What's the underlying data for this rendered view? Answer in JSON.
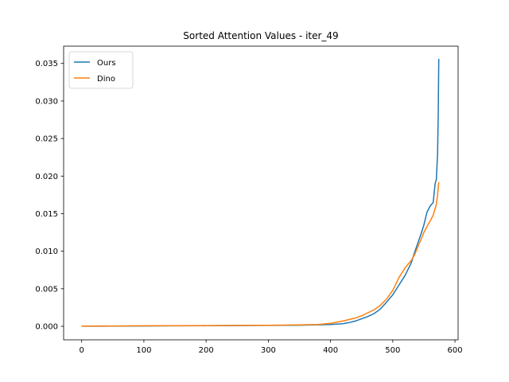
{
  "chart_data": {
    "type": "line",
    "title": "Sorted Attention Values - iter_49",
    "xlabel": "",
    "ylabel": "",
    "xlim": [
      -29,
      605
    ],
    "ylim": [
      -0.0018,
      0.0373
    ],
    "xticks": [
      0,
      100,
      200,
      300,
      400,
      500,
      600
    ],
    "xtick_labels": [
      "0",
      "100",
      "200",
      "300",
      "400",
      "500",
      "600"
    ],
    "yticks": [
      0.0,
      0.005,
      0.01,
      0.015,
      0.02,
      0.025,
      0.03,
      0.035
    ],
    "ytick_labels": [
      "0.000",
      "0.005",
      "0.010",
      "0.015",
      "0.020",
      "0.025",
      "0.030",
      "0.035"
    ],
    "grid": false,
    "legend_position": "upper-left",
    "series": [
      {
        "name": "Ours",
        "color": "#1f77b4",
        "x": [
          0,
          50,
          100,
          150,
          200,
          250,
          300,
          350,
          380,
          400,
          420,
          430,
          440,
          450,
          460,
          470,
          480,
          490,
          500,
          510,
          520,
          530,
          535,
          540,
          545,
          550,
          555,
          560,
          565,
          568,
          570,
          572,
          573,
          574
        ],
        "y": [
          1e-05,
          2e-05,
          4e-05,
          6e-05,
          8e-05,
          0.0001,
          0.00012,
          0.00015,
          0.0002,
          0.00025,
          0.00035,
          0.0005,
          0.0007,
          0.001,
          0.0013,
          0.0017,
          0.0023,
          0.0032,
          0.0042,
          0.0055,
          0.0068,
          0.0085,
          0.0098,
          0.011,
          0.0122,
          0.0135,
          0.0152,
          0.016,
          0.0165,
          0.019,
          0.0195,
          0.023,
          0.028,
          0.0356
        ]
      },
      {
        "name": "Dino",
        "color": "#ff7f0e",
        "x": [
          0,
          50,
          100,
          150,
          200,
          250,
          300,
          350,
          380,
          400,
          420,
          430,
          440,
          450,
          460,
          470,
          480,
          490,
          500,
          510,
          520,
          530,
          535,
          540,
          545,
          550,
          555,
          560,
          565,
          570,
          572,
          574
        ],
        "y": [
          3e-05,
          4e-05,
          6e-05,
          8e-05,
          0.0001,
          0.00012,
          0.00014,
          0.00018,
          0.00025,
          0.0004,
          0.0007,
          0.0009,
          0.0011,
          0.0014,
          0.0018,
          0.0022,
          0.0028,
          0.0036,
          0.0048,
          0.0065,
          0.0078,
          0.0088,
          0.0095,
          0.0105,
          0.0115,
          0.0125,
          0.0133,
          0.014,
          0.0148,
          0.0162,
          0.0175,
          0.0192
        ]
      }
    ]
  }
}
